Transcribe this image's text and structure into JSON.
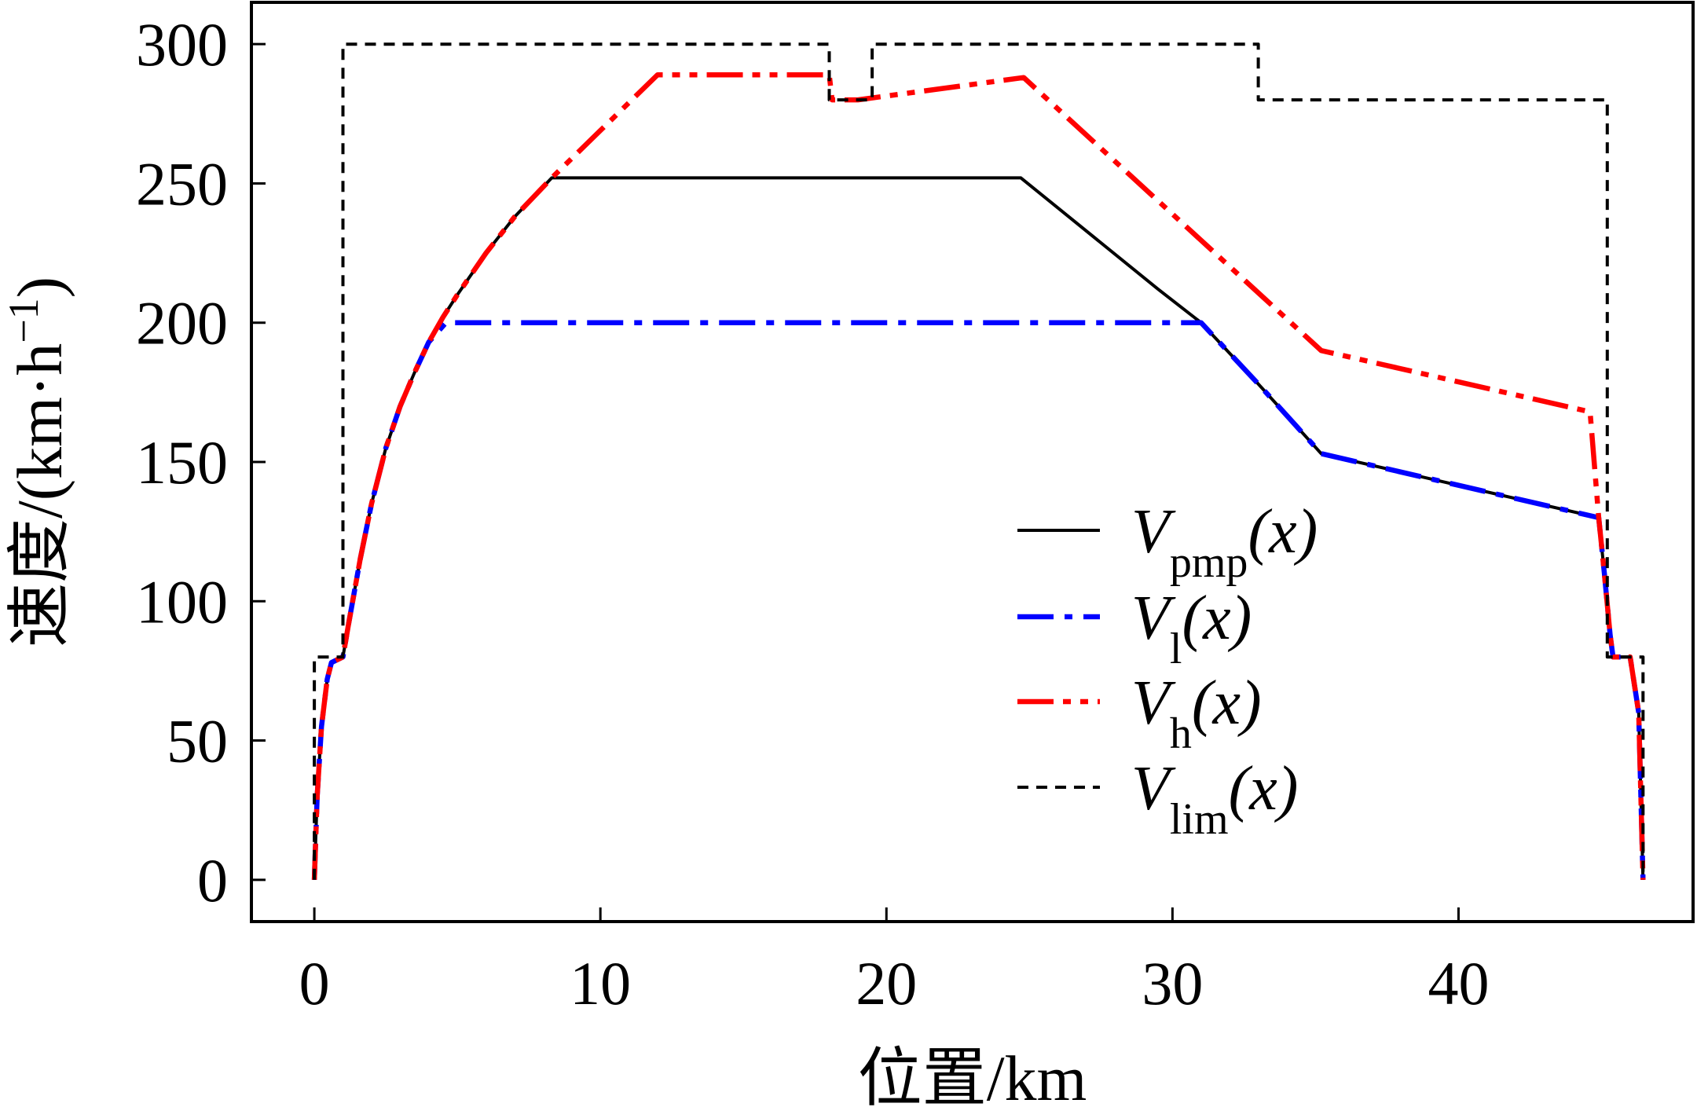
{
  "chart_data": {
    "type": "line",
    "title": "",
    "xlabel": "位置/km",
    "ylabel_prefix": "速度/(km·h",
    "ylabel_sup": "−1",
    "ylabel_suffix": ")",
    "xlim": [
      -2.2,
      48.2
    ],
    "ylim": [
      -15,
      315
    ],
    "xticks": [
      0,
      10,
      20,
      30,
      40
    ],
    "yticks": [
      0,
      50,
      100,
      150,
      200,
      250,
      300
    ],
    "grid": false,
    "legend_position": "center-right",
    "series": [
      {
        "key": "vpmp",
        "name": "V_pmp(x)",
        "legend_main": "V",
        "legend_sub": "pmp",
        "legend_arg": "(x)",
        "color": "#000000",
        "dash": "solid",
        "points": [
          [
            0,
            0
          ],
          [
            0.1,
            30
          ],
          [
            0.25,
            55
          ],
          [
            0.45,
            72
          ],
          [
            0.6,
            78
          ],
          [
            1.0,
            80
          ],
          [
            1.2,
            92
          ],
          [
            1.6,
            115
          ],
          [
            2,
            135
          ],
          [
            2.5,
            155
          ],
          [
            3,
            170
          ],
          [
            3.5,
            182
          ],
          [
            4,
            193
          ],
          [
            4.5,
            202
          ],
          [
            5,
            210
          ],
          [
            6,
            225
          ],
          [
            7,
            238
          ],
          [
            8.3,
            252
          ],
          [
            24.7,
            252
          ],
          [
            29.5,
            212
          ],
          [
            31,
            200
          ],
          [
            33,
            178
          ],
          [
            35.2,
            153
          ],
          [
            44.9,
            130
          ],
          [
            45.1,
            110
          ],
          [
            45.3,
            88
          ],
          [
            45.4,
            80
          ],
          [
            46,
            80
          ],
          [
            46.3,
            60
          ],
          [
            46.45,
            0
          ]
        ]
      },
      {
        "key": "vl",
        "name": "V_l(x)",
        "legend_main": "V",
        "legend_sub": "l",
        "legend_arg": "(x)",
        "color": "#0000ff",
        "dash": "dashdot",
        "points": [
          [
            0,
            0
          ],
          [
            0.1,
            30
          ],
          [
            0.25,
            55
          ],
          [
            0.45,
            72
          ],
          [
            0.6,
            78
          ],
          [
            1.0,
            80
          ],
          [
            1.2,
            92
          ],
          [
            1.6,
            115
          ],
          [
            2,
            135
          ],
          [
            2.5,
            155
          ],
          [
            3,
            170
          ],
          [
            3.5,
            182
          ],
          [
            4,
            193
          ],
          [
            4.6,
            200
          ],
          [
            30.6,
            200
          ],
          [
            31,
            200
          ],
          [
            33,
            178
          ],
          [
            35.2,
            153
          ],
          [
            44.9,
            130
          ],
          [
            45.1,
            110
          ],
          [
            45.3,
            88
          ],
          [
            45.4,
            80
          ],
          [
            46,
            80
          ],
          [
            46.3,
            60
          ],
          [
            46.45,
            0
          ]
        ]
      },
      {
        "key": "vh",
        "name": "V_h(x)",
        "legend_main": "V",
        "legend_sub": "h",
        "legend_arg": "(x)",
        "color": "#ff0000",
        "dash": "dashdotdot",
        "points": [
          [
            0,
            0
          ],
          [
            0.1,
            30
          ],
          [
            0.25,
            55
          ],
          [
            0.45,
            72
          ],
          [
            0.6,
            78
          ],
          [
            1.0,
            80
          ],
          [
            1.2,
            92
          ],
          [
            1.6,
            115
          ],
          [
            2,
            135
          ],
          [
            2.5,
            155
          ],
          [
            3,
            170
          ],
          [
            3.5,
            182
          ],
          [
            4,
            193
          ],
          [
            4.5,
            202
          ],
          [
            5,
            210
          ],
          [
            6,
            225
          ],
          [
            7,
            238
          ],
          [
            8.3,
            252
          ],
          [
            10,
            269
          ],
          [
            12,
            289
          ],
          [
            18,
            289
          ],
          [
            18.1,
            280
          ],
          [
            19,
            280
          ],
          [
            24.8,
            288
          ],
          [
            35.2,
            190
          ],
          [
            44.6,
            168
          ],
          [
            44.9,
            130
          ],
          [
            45.1,
            110
          ],
          [
            45.3,
            88
          ],
          [
            45.4,
            80
          ],
          [
            46,
            80
          ],
          [
            46.3,
            60
          ],
          [
            46.45,
            0
          ]
        ]
      },
      {
        "key": "vlim",
        "name": "V_lim(x)",
        "legend_main": "V",
        "legend_sub": "lim",
        "legend_arg": "(x)",
        "color": "#000000",
        "dash": "dashed",
        "points": [
          [
            0,
            0
          ],
          [
            0,
            80
          ],
          [
            1.0,
            80
          ],
          [
            1.0,
            300
          ],
          [
            18.0,
            300
          ],
          [
            18.0,
            280
          ],
          [
            19.5,
            280
          ],
          [
            19.5,
            300
          ],
          [
            33.0,
            300
          ],
          [
            33.0,
            280
          ],
          [
            45.2,
            280
          ],
          [
            45.2,
            80
          ],
          [
            46.45,
            80
          ],
          [
            46.45,
            0
          ]
        ]
      }
    ]
  }
}
